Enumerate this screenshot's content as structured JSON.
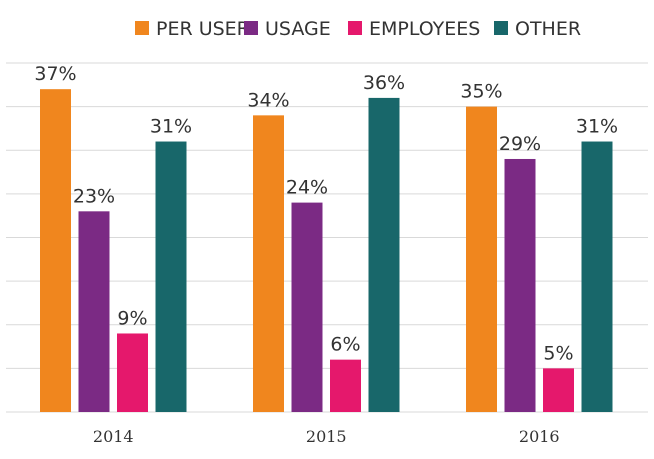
{
  "chart_data": {
    "type": "bar",
    "categories": [
      "2014",
      "2015",
      "2016"
    ],
    "series": [
      {
        "name": "PER USER",
        "color": "#F0861E",
        "values": [
          37,
          34,
          35
        ],
        "labels": [
          "37%",
          "34%",
          "35%"
        ]
      },
      {
        "name": "USAGE",
        "color": "#7B2A84",
        "values": [
          23,
          24,
          29
        ],
        "labels": [
          "23%",
          "24%",
          "29%"
        ]
      },
      {
        "name": "EMPLOYEES",
        "color": "#E5186C",
        "values": [
          9,
          6,
          5
        ],
        "labels": [
          "9%",
          "6%",
          "5%"
        ]
      },
      {
        "name": "OTHER",
        "color": "#18676A",
        "values": [
          31,
          36,
          31
        ],
        "labels": [
          "31%",
          "36%",
          "31%"
        ]
      }
    ],
    "ylim": [
      0,
      40
    ],
    "ytick_step": 5,
    "grid": true,
    "legend_position": "top-center",
    "title": "",
    "xlabel": "",
    "ylabel": ""
  }
}
